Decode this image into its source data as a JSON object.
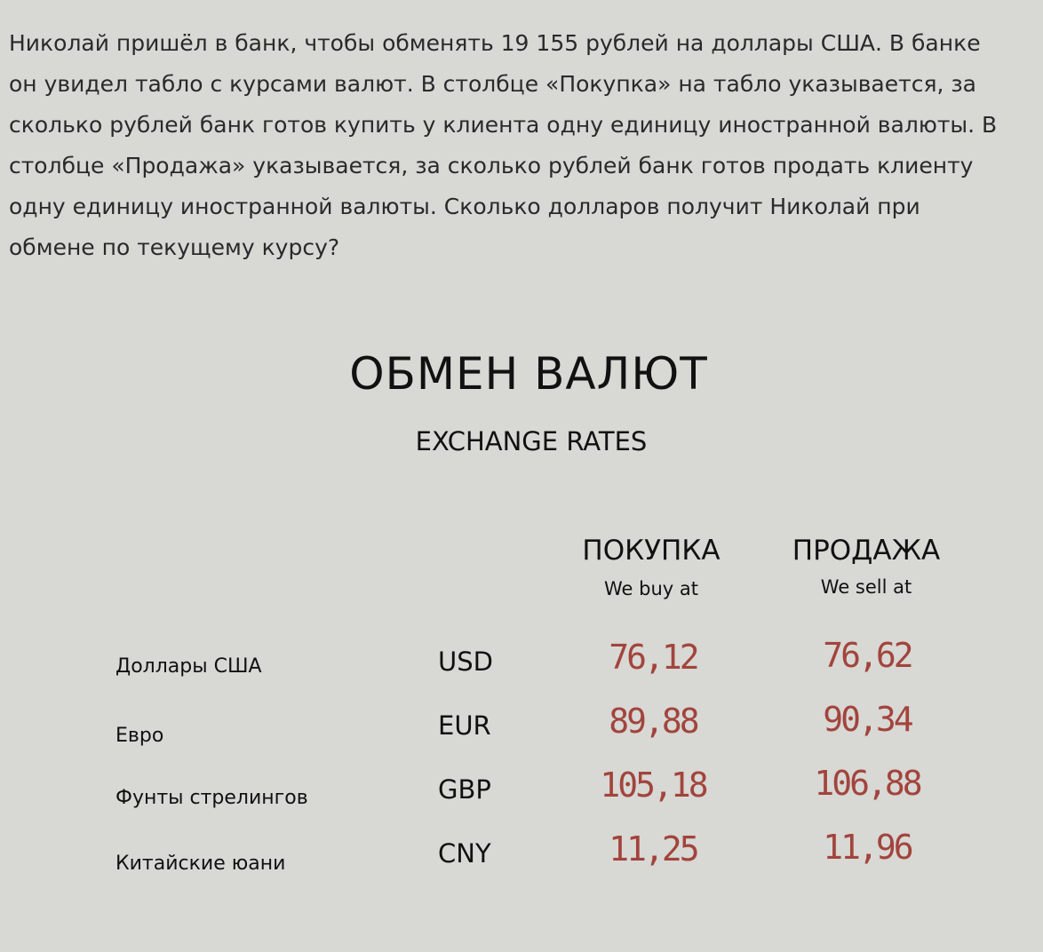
{
  "problem": {
    "lines": [
      "Николай пришёл в банк, чтобы обменять 19 155 рублей на доллары США. В банке",
      "он увидел табло с курсами валют. В столбце «Покупка» на табло указывается, за",
      "сколько рублей банк готов купить у клиента одну единицу иностранной валюты. В",
      "столбце «Продажа» указывается, за сколько рублей банк готов продать клиенту",
      "одну единицу иностранной валюты. Сколько долларов получит Николай при",
      "обмене по текущему курсу?"
    ]
  },
  "board": {
    "title": "ОБМЕН ВАЛЮТ",
    "subtitle": "EXCHANGE RATES",
    "columns": {
      "buy": {
        "label": "ПОКУПКА",
        "sub": "We buy at"
      },
      "sell": {
        "label": "ПРОДАЖА",
        "sub": "We sell at"
      }
    },
    "rates_color": "#a2443c",
    "rows": [
      {
        "name": "Доллары США",
        "code": "USD",
        "buy": "76,12",
        "sell": "76,62"
      },
      {
        "name": "Евро",
        "code": "EUR",
        "buy": "89,88",
        "sell": "90,34"
      },
      {
        "name": "Фунты стрелингов",
        "code": "GBP",
        "buy": "105,18",
        "sell": "106,88"
      },
      {
        "name": "Китайские юани",
        "code": "CNY",
        "buy": "11,25",
        "sell": "11,96"
      }
    ]
  }
}
